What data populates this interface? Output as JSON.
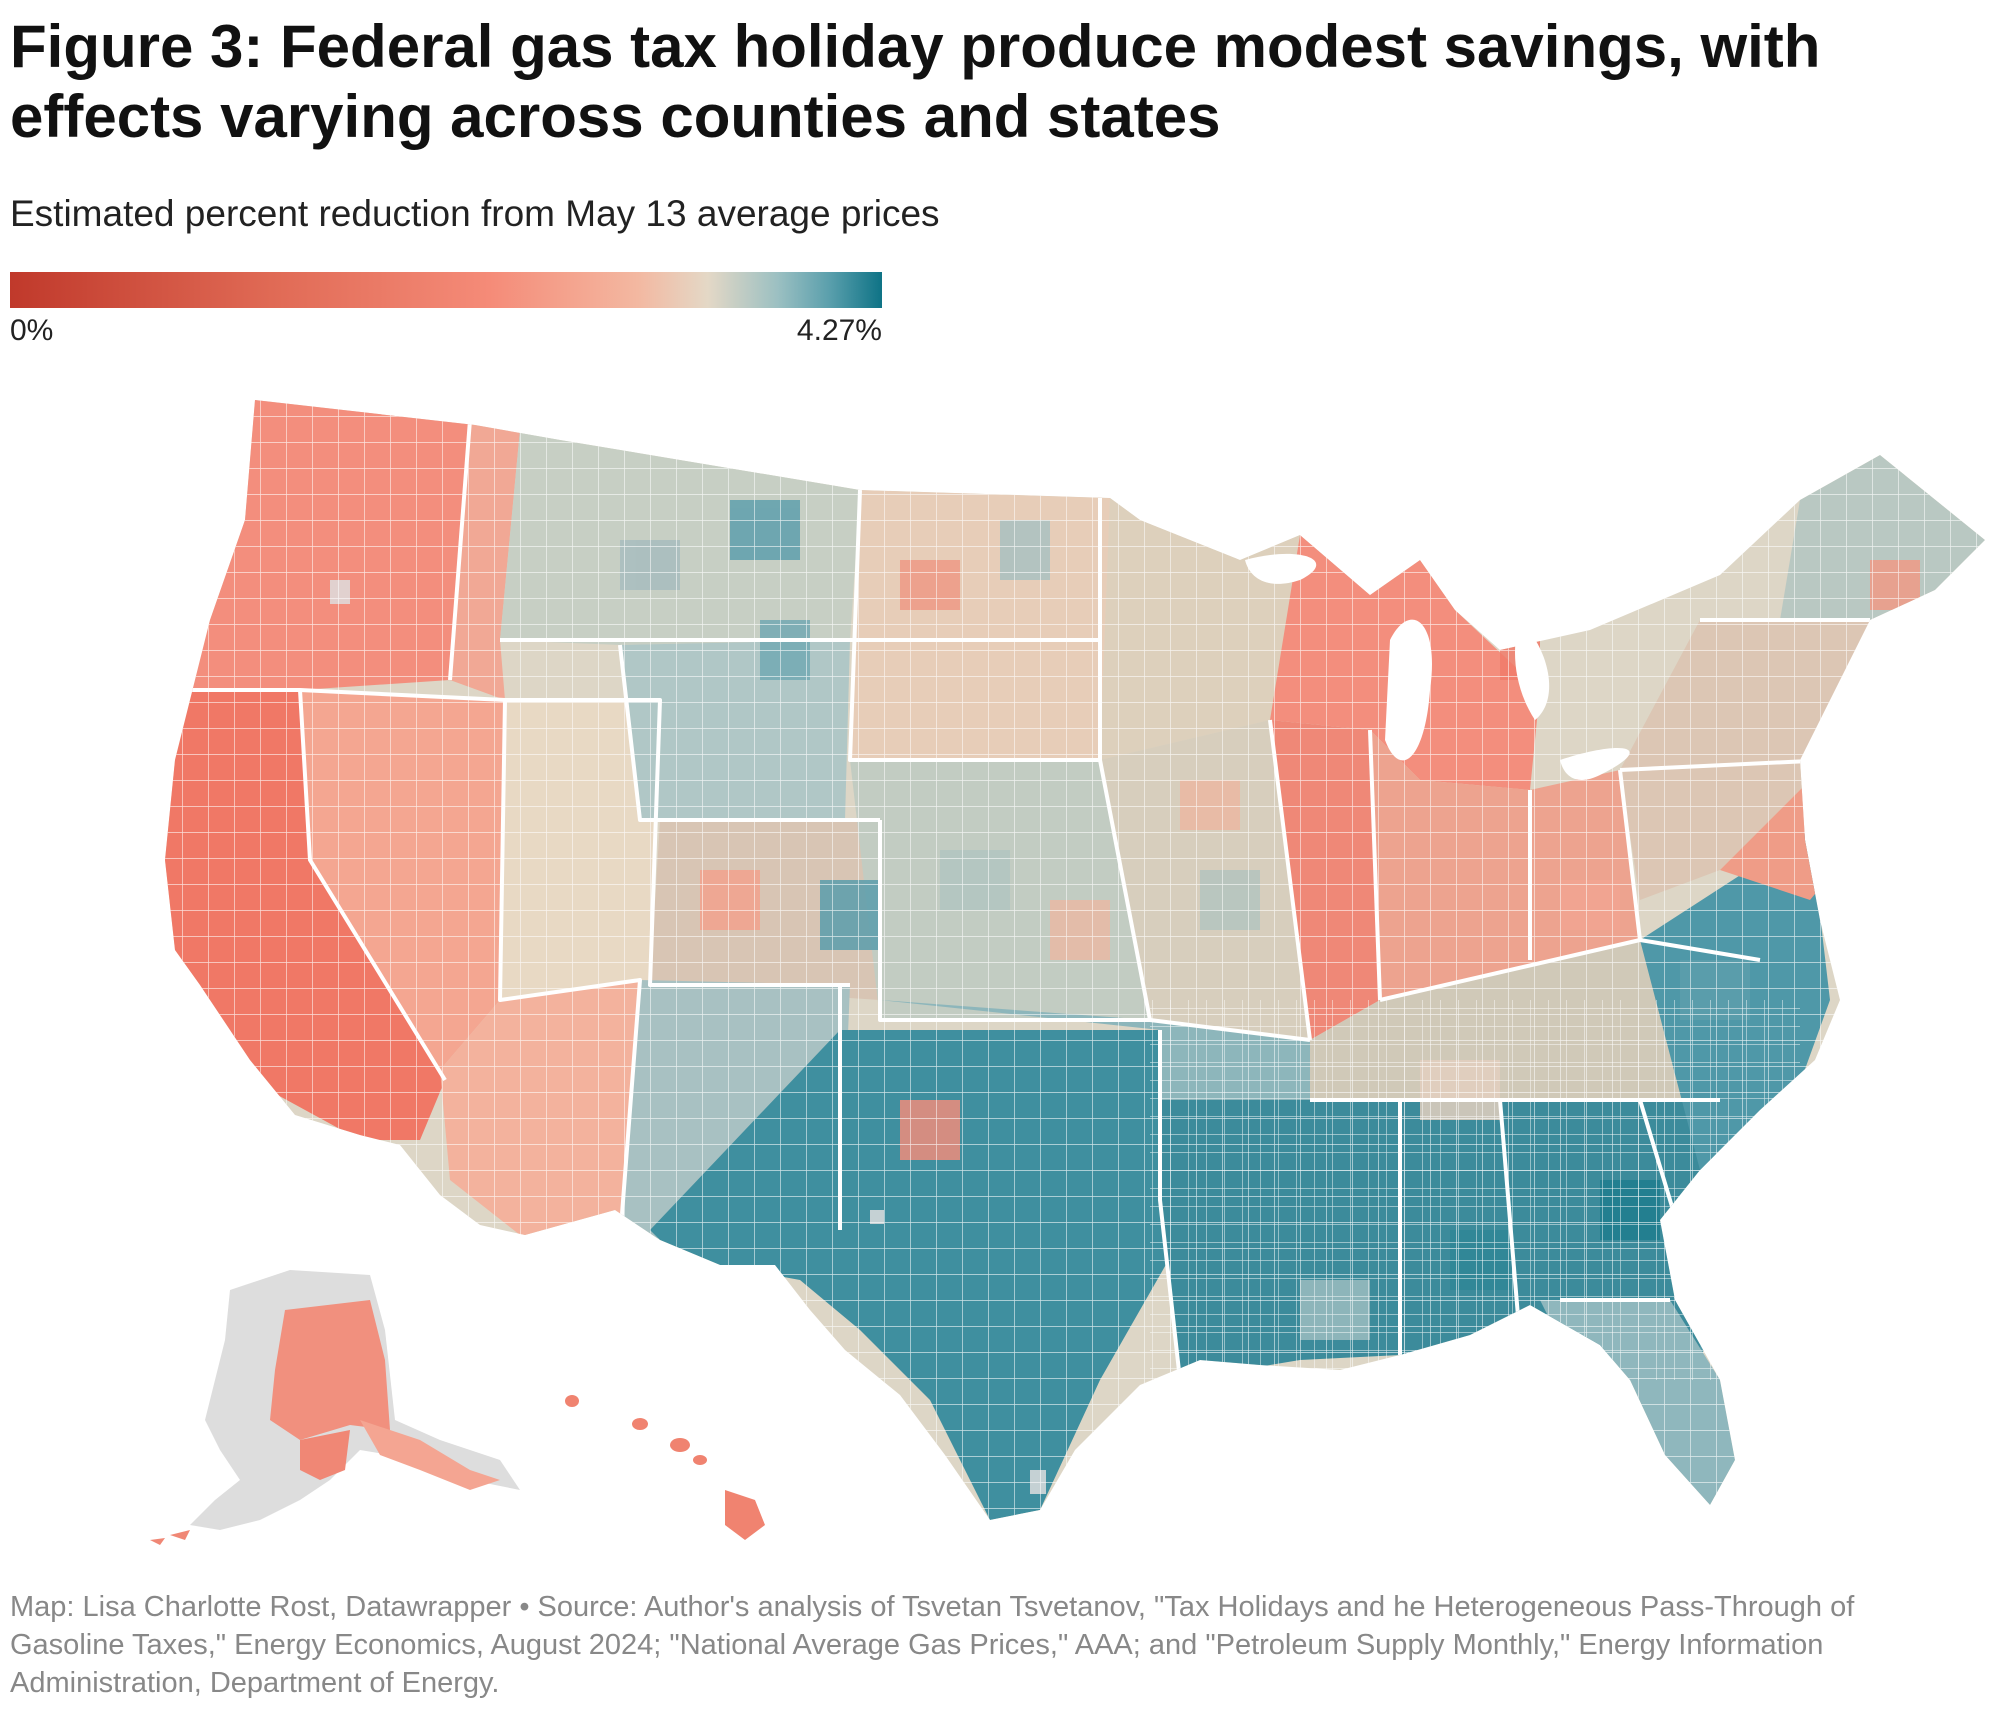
{
  "title": "Figure 3: Federal gas tax holiday produce modest savings, with effects varying across counties and states",
  "subtitle": "Estimated percent reduction from May 13 average prices",
  "legend": {
    "min_label": "0%",
    "max_label": "4.27%",
    "min_value": 0,
    "max_value": 4.27,
    "colors": [
      "#c0392b",
      "#e06a55",
      "#f58b78",
      "#f3b8a1",
      "#e4d8c6",
      "#9cc0c2",
      "#5a9fac",
      "#0e7386"
    ]
  },
  "footer": "Map: Lisa Charlotte Rost, Datawrapper • Source: Author's analysis of Tsvetan Tsvetanov, \"Tax Holidays and he Heterogeneous Pass-Through of Gasoline Taxes,\" Energy Economics, August 2024; \"National Average Gas Prices,\" AAA; and \"Petroleum Supply Monthly,\" Energy Information Administration, Department of Energy.",
  "map": {
    "no_data_color": "#dddddd",
    "border_color": "#ffffff"
  }
}
